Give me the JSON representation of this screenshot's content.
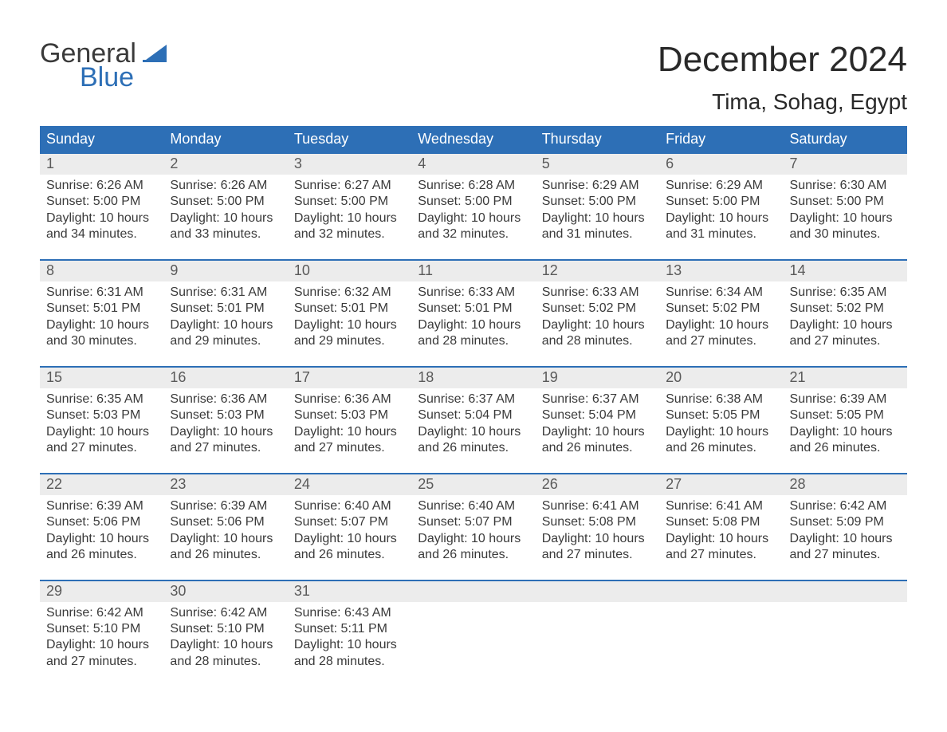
{
  "brand": {
    "word1": "General",
    "word2": "Blue",
    "accent_color": "#2d6fb6"
  },
  "title": "December 2024",
  "location": "Tima, Sohag, Egypt",
  "colors": {
    "header_bg": "#2d6fb6",
    "header_text": "#ffffff",
    "daynum_bg": "#ececec",
    "body_text": "#3a3a3a",
    "week_border": "#2d6fb6"
  },
  "day_headers": [
    "Sunday",
    "Monday",
    "Tuesday",
    "Wednesday",
    "Thursday",
    "Friday",
    "Saturday"
  ],
  "weeks": [
    [
      {
        "n": "1",
        "sunrise": "Sunrise: 6:26 AM",
        "sunset": "Sunset: 5:00 PM",
        "daylight": "Daylight: 10 hours and 34 minutes."
      },
      {
        "n": "2",
        "sunrise": "Sunrise: 6:26 AM",
        "sunset": "Sunset: 5:00 PM",
        "daylight": "Daylight: 10 hours and 33 minutes."
      },
      {
        "n": "3",
        "sunrise": "Sunrise: 6:27 AM",
        "sunset": "Sunset: 5:00 PM",
        "daylight": "Daylight: 10 hours and 32 minutes."
      },
      {
        "n": "4",
        "sunrise": "Sunrise: 6:28 AM",
        "sunset": "Sunset: 5:00 PM",
        "daylight": "Daylight: 10 hours and 32 minutes."
      },
      {
        "n": "5",
        "sunrise": "Sunrise: 6:29 AM",
        "sunset": "Sunset: 5:00 PM",
        "daylight": "Daylight: 10 hours and 31 minutes."
      },
      {
        "n": "6",
        "sunrise": "Sunrise: 6:29 AM",
        "sunset": "Sunset: 5:00 PM",
        "daylight": "Daylight: 10 hours and 31 minutes."
      },
      {
        "n": "7",
        "sunrise": "Sunrise: 6:30 AM",
        "sunset": "Sunset: 5:00 PM",
        "daylight": "Daylight: 10 hours and 30 minutes."
      }
    ],
    [
      {
        "n": "8",
        "sunrise": "Sunrise: 6:31 AM",
        "sunset": "Sunset: 5:01 PM",
        "daylight": "Daylight: 10 hours and 30 minutes."
      },
      {
        "n": "9",
        "sunrise": "Sunrise: 6:31 AM",
        "sunset": "Sunset: 5:01 PM",
        "daylight": "Daylight: 10 hours and 29 minutes."
      },
      {
        "n": "10",
        "sunrise": "Sunrise: 6:32 AM",
        "sunset": "Sunset: 5:01 PM",
        "daylight": "Daylight: 10 hours and 29 minutes."
      },
      {
        "n": "11",
        "sunrise": "Sunrise: 6:33 AM",
        "sunset": "Sunset: 5:01 PM",
        "daylight": "Daylight: 10 hours and 28 minutes."
      },
      {
        "n": "12",
        "sunrise": "Sunrise: 6:33 AM",
        "sunset": "Sunset: 5:02 PM",
        "daylight": "Daylight: 10 hours and 28 minutes."
      },
      {
        "n": "13",
        "sunrise": "Sunrise: 6:34 AM",
        "sunset": "Sunset: 5:02 PM",
        "daylight": "Daylight: 10 hours and 27 minutes."
      },
      {
        "n": "14",
        "sunrise": "Sunrise: 6:35 AM",
        "sunset": "Sunset: 5:02 PM",
        "daylight": "Daylight: 10 hours and 27 minutes."
      }
    ],
    [
      {
        "n": "15",
        "sunrise": "Sunrise: 6:35 AM",
        "sunset": "Sunset: 5:03 PM",
        "daylight": "Daylight: 10 hours and 27 minutes."
      },
      {
        "n": "16",
        "sunrise": "Sunrise: 6:36 AM",
        "sunset": "Sunset: 5:03 PM",
        "daylight": "Daylight: 10 hours and 27 minutes."
      },
      {
        "n": "17",
        "sunrise": "Sunrise: 6:36 AM",
        "sunset": "Sunset: 5:03 PM",
        "daylight": "Daylight: 10 hours and 27 minutes."
      },
      {
        "n": "18",
        "sunrise": "Sunrise: 6:37 AM",
        "sunset": "Sunset: 5:04 PM",
        "daylight": "Daylight: 10 hours and 26 minutes."
      },
      {
        "n": "19",
        "sunrise": "Sunrise: 6:37 AM",
        "sunset": "Sunset: 5:04 PM",
        "daylight": "Daylight: 10 hours and 26 minutes."
      },
      {
        "n": "20",
        "sunrise": "Sunrise: 6:38 AM",
        "sunset": "Sunset: 5:05 PM",
        "daylight": "Daylight: 10 hours and 26 minutes."
      },
      {
        "n": "21",
        "sunrise": "Sunrise: 6:39 AM",
        "sunset": "Sunset: 5:05 PM",
        "daylight": "Daylight: 10 hours and 26 minutes."
      }
    ],
    [
      {
        "n": "22",
        "sunrise": "Sunrise: 6:39 AM",
        "sunset": "Sunset: 5:06 PM",
        "daylight": "Daylight: 10 hours and 26 minutes."
      },
      {
        "n": "23",
        "sunrise": "Sunrise: 6:39 AM",
        "sunset": "Sunset: 5:06 PM",
        "daylight": "Daylight: 10 hours and 26 minutes."
      },
      {
        "n": "24",
        "sunrise": "Sunrise: 6:40 AM",
        "sunset": "Sunset: 5:07 PM",
        "daylight": "Daylight: 10 hours and 26 minutes."
      },
      {
        "n": "25",
        "sunrise": "Sunrise: 6:40 AM",
        "sunset": "Sunset: 5:07 PM",
        "daylight": "Daylight: 10 hours and 26 minutes."
      },
      {
        "n": "26",
        "sunrise": "Sunrise: 6:41 AM",
        "sunset": "Sunset: 5:08 PM",
        "daylight": "Daylight: 10 hours and 27 minutes."
      },
      {
        "n": "27",
        "sunrise": "Sunrise: 6:41 AM",
        "sunset": "Sunset: 5:08 PM",
        "daylight": "Daylight: 10 hours and 27 minutes."
      },
      {
        "n": "28",
        "sunrise": "Sunrise: 6:42 AM",
        "sunset": "Sunset: 5:09 PM",
        "daylight": "Daylight: 10 hours and 27 minutes."
      }
    ],
    [
      {
        "n": "29",
        "sunrise": "Sunrise: 6:42 AM",
        "sunset": "Sunset: 5:10 PM",
        "daylight": "Daylight: 10 hours and 27 minutes."
      },
      {
        "n": "30",
        "sunrise": "Sunrise: 6:42 AM",
        "sunset": "Sunset: 5:10 PM",
        "daylight": "Daylight: 10 hours and 28 minutes."
      },
      {
        "n": "31",
        "sunrise": "Sunrise: 6:43 AM",
        "sunset": "Sunset: 5:11 PM",
        "daylight": "Daylight: 10 hours and 28 minutes."
      },
      null,
      null,
      null,
      null
    ]
  ]
}
